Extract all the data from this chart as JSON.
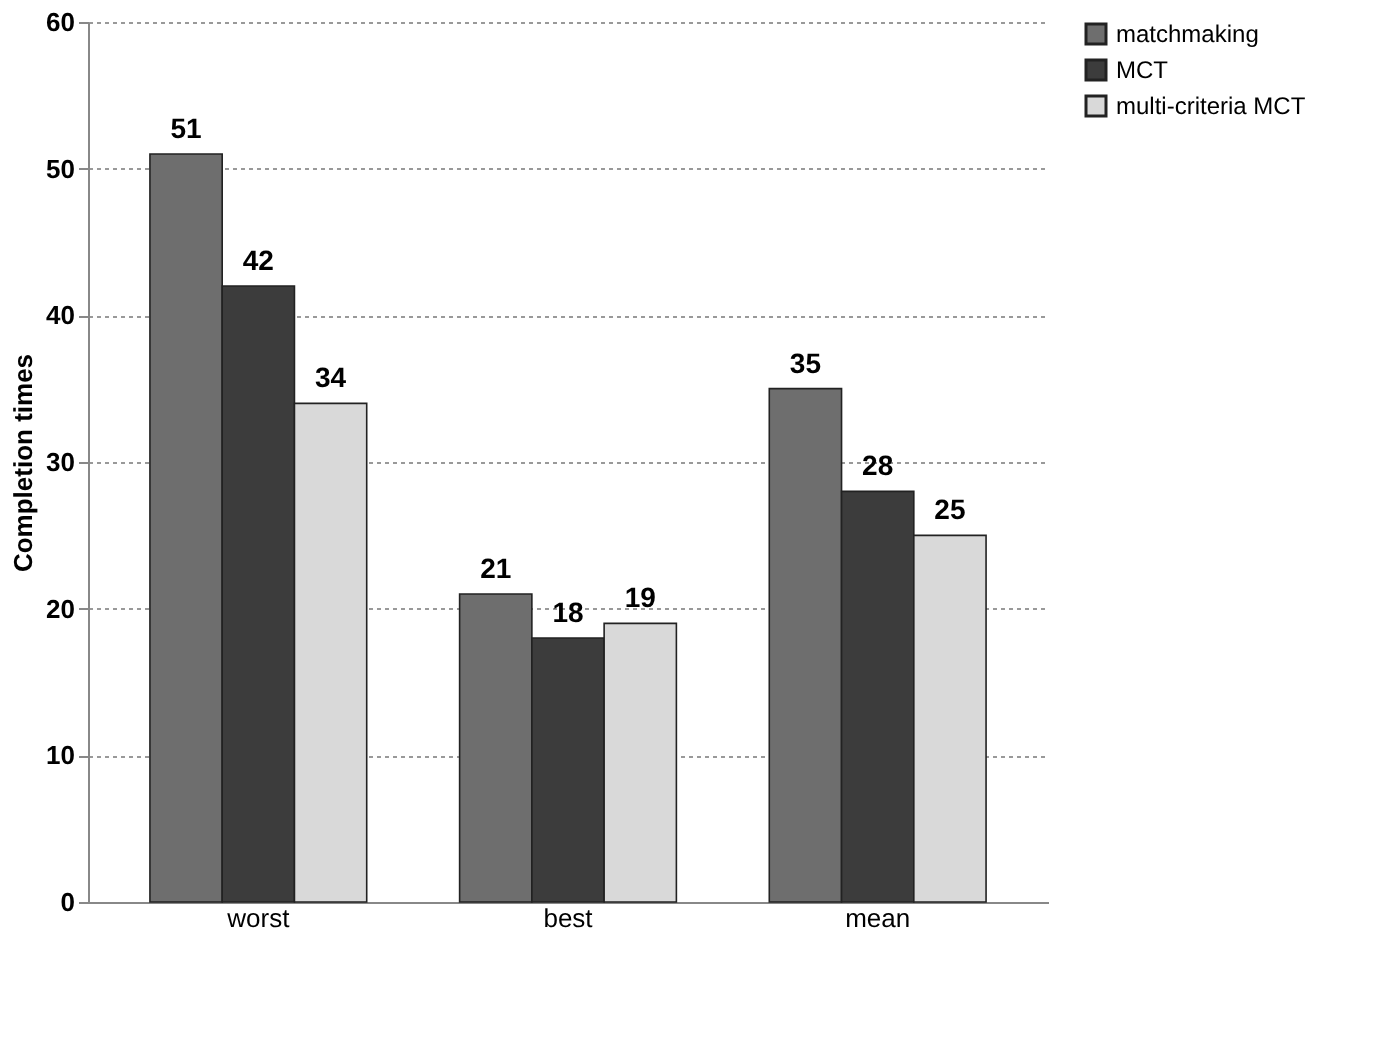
{
  "chart_data": {
    "type": "bar",
    "ylabel": "Completion times",
    "categories": [
      "worst",
      "best",
      "mean"
    ],
    "series": [
      {
        "name": "matchmaking",
        "color": "#6e6e6e",
        "values": [
          51,
          21,
          35
        ]
      },
      {
        "name": "MCT",
        "color": "#3c3c3c",
        "values": [
          42,
          18,
          28
        ]
      },
      {
        "name": "multi-criteria MCT",
        "color": "#d9d9d9",
        "values": [
          34,
          19,
          25
        ]
      }
    ],
    "ylim": [
      0,
      60
    ],
    "yticks": [
      0,
      10,
      20,
      30,
      40,
      50,
      60
    ],
    "grid": "y",
    "legend": "top right",
    "data_labels": true
  }
}
